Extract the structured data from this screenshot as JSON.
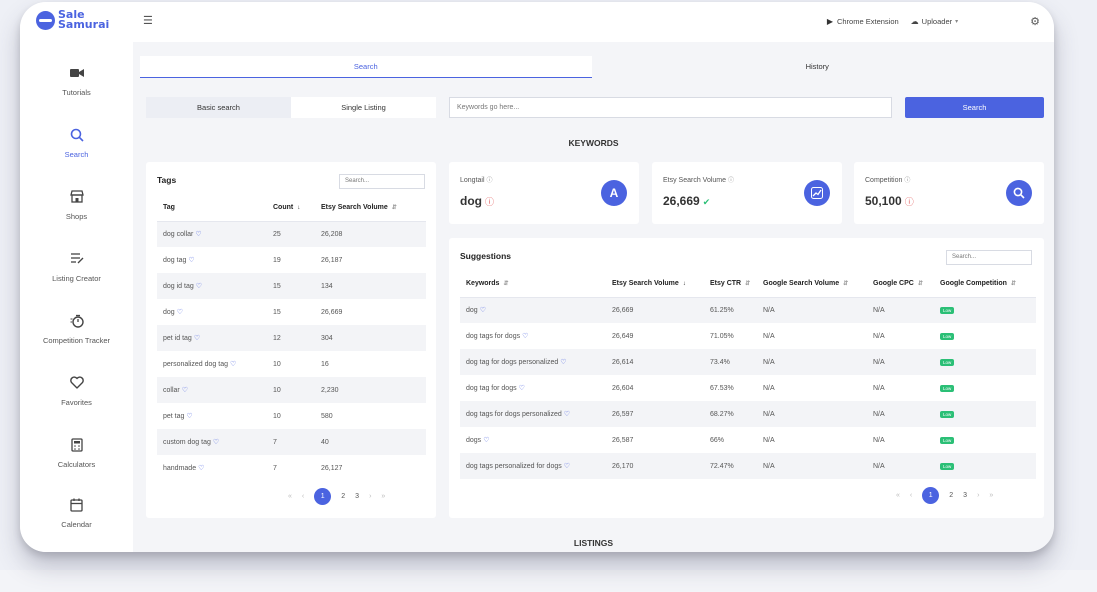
{
  "app": {
    "logo_line1": "Sale",
    "logo_line2": "Samurai"
  },
  "topbar": {
    "chrome_extension": "Chrome Extension",
    "uploader": "Uploader"
  },
  "sidebar": {
    "items": [
      {
        "label": "Tutorials",
        "icon": "video-camera-icon"
      },
      {
        "label": "Search",
        "icon": "search-icon",
        "active": true
      },
      {
        "label": "Shops",
        "icon": "store-icon"
      },
      {
        "label": "Listing Creator",
        "icon": "list-edit-icon"
      },
      {
        "label": "Competition Tracker",
        "icon": "stopwatch-icon"
      },
      {
        "label": "Favorites",
        "icon": "heart-icon"
      },
      {
        "label": "Calculators",
        "icon": "calculator-icon"
      },
      {
        "label": "Calendar",
        "icon": "calendar-icon"
      }
    ]
  },
  "tabs": {
    "search": "Search",
    "history": "History"
  },
  "search": {
    "basic": "Basic search",
    "single": "Single Listing",
    "placeholder": "Keywords go here...",
    "button": "Search"
  },
  "sections": {
    "keywords": "KEYWORDS",
    "listings": "LISTINGS"
  },
  "tags": {
    "title": "Tags",
    "search_placeholder": "Search...",
    "columns": {
      "tag": "Tag",
      "count": "Count",
      "volume": "Etsy Search Volume"
    },
    "rows": [
      {
        "tag": "dog collar",
        "count": "25",
        "volume": "26,208"
      },
      {
        "tag": "dog tag",
        "count": "19",
        "volume": "26,187"
      },
      {
        "tag": "dog id tag",
        "count": "15",
        "volume": "134"
      },
      {
        "tag": "dog",
        "count": "15",
        "volume": "26,669"
      },
      {
        "tag": "pet id tag",
        "count": "12",
        "volume": "304"
      },
      {
        "tag": "personalized dog tag",
        "count": "10",
        "volume": "16"
      },
      {
        "tag": "collar",
        "count": "10",
        "volume": "2,230"
      },
      {
        "tag": "pet tag",
        "count": "10",
        "volume": "580"
      },
      {
        "tag": "custom dog tag",
        "count": "7",
        "volume": "40"
      },
      {
        "tag": "handmade",
        "count": "7",
        "volume": "26,127"
      }
    ],
    "pages": [
      "1",
      "2",
      "3"
    ]
  },
  "stats": {
    "longtail": {
      "label": "Longtail",
      "value": "dog",
      "icon_letter": "A"
    },
    "volume": {
      "label": "Etsy Search Volume",
      "value": "26,669"
    },
    "competition": {
      "label": "Competition",
      "value": "50,100"
    }
  },
  "suggestions": {
    "title": "Suggestions",
    "search_placeholder": "Search...",
    "columns": {
      "keywords": "Keywords",
      "volume": "Etsy Search Volume",
      "ctr": "Etsy CTR",
      "gvolume": "Google Search Volume",
      "cpc": "Google CPC",
      "gcomp": "Google Competition"
    },
    "rows": [
      {
        "keyword": "dog",
        "volume": "26,669",
        "ctr": "61.25%",
        "gvolume": "N/A",
        "cpc": "N/A",
        "comp": "Low"
      },
      {
        "keyword": "dog tags for dogs",
        "volume": "26,649",
        "ctr": "71.05%",
        "gvolume": "N/A",
        "cpc": "N/A",
        "comp": "Low"
      },
      {
        "keyword": "dog tag for dogs personalized",
        "volume": "26,614",
        "ctr": "73.4%",
        "gvolume": "N/A",
        "cpc": "N/A",
        "comp": "Low"
      },
      {
        "keyword": "dog tag for dogs",
        "volume": "26,604",
        "ctr": "67.53%",
        "gvolume": "N/A",
        "cpc": "N/A",
        "comp": "Low"
      },
      {
        "keyword": "dog tags for dogs personalized",
        "volume": "26,597",
        "ctr": "68.27%",
        "gvolume": "N/A",
        "cpc": "N/A",
        "comp": "Low"
      },
      {
        "keyword": "dogs",
        "volume": "26,587",
        "ctr": "66%",
        "gvolume": "N/A",
        "cpc": "N/A",
        "comp": "Low"
      },
      {
        "keyword": "dog tags personalized for dogs",
        "volume": "26,170",
        "ctr": "72.47%",
        "gvolume": "N/A",
        "cpc": "N/A",
        "comp": "Low"
      }
    ],
    "pages": [
      "1",
      "2",
      "3"
    ]
  },
  "colors": {
    "accent": "#4b63e0",
    "success": "#2bbf76",
    "danger": "#e05555"
  }
}
